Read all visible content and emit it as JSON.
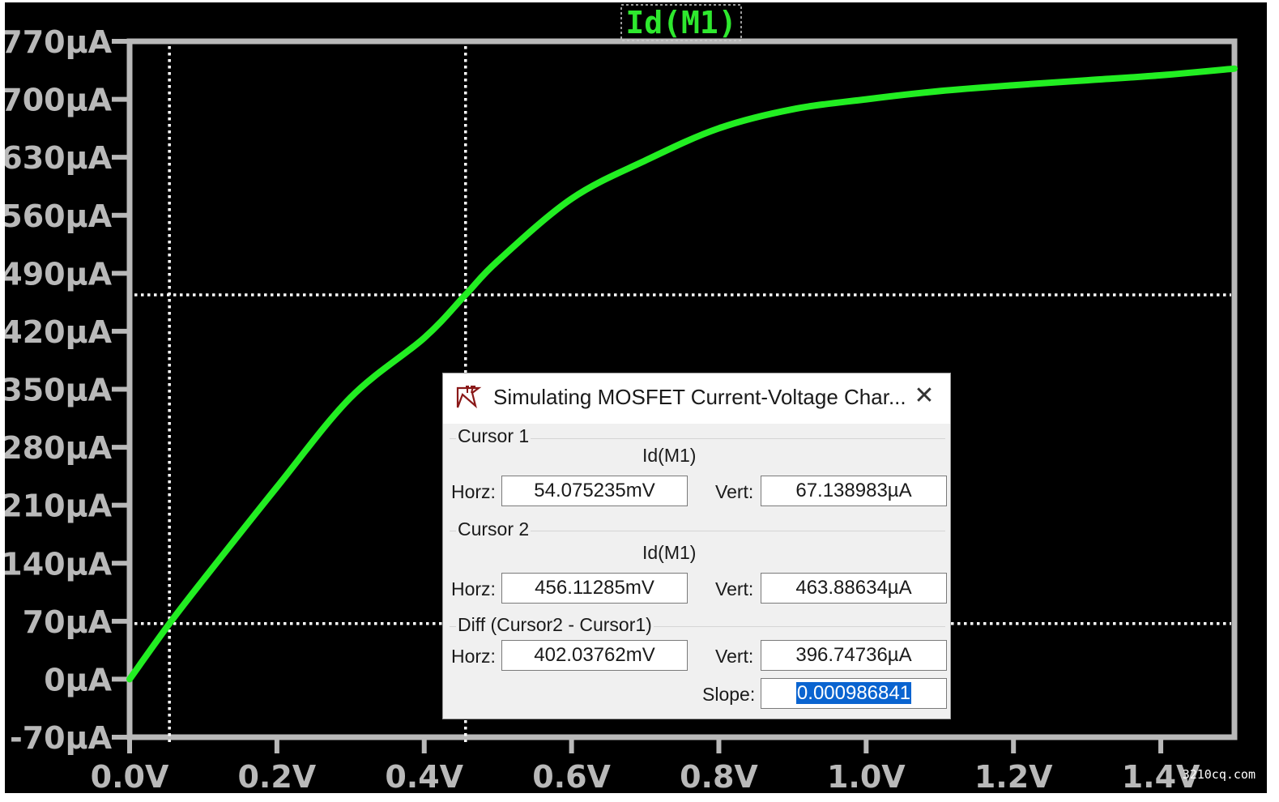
{
  "plot": {
    "trace_title": "Id(M1)",
    "background": "#000000",
    "trace_color": "#22ee22",
    "axis_color": "#b9b9b9"
  },
  "chart_data": {
    "type": "line",
    "title": "Id(M1)",
    "xlabel": "",
    "ylabel": "",
    "xlim": [
      0.0,
      1.5
    ],
    "ylim": [
      -70,
      770
    ],
    "x_unit": "V",
    "y_unit": "µA",
    "x_ticks": [
      "0.0V",
      "0.2V",
      "0.4V",
      "0.6V",
      "0.8V",
      "1.0V",
      "1.2V",
      "1.4V"
    ],
    "x_tick_values": [
      0.0,
      0.2,
      0.4,
      0.6,
      0.8,
      1.0,
      1.2,
      1.4
    ],
    "y_ticks": [
      "770µA",
      "700µA",
      "630µA",
      "560µA",
      "490µA",
      "420µA",
      "350µA",
      "280µA",
      "210µA",
      "140µA",
      "70µA",
      "0µA",
      "-70µA"
    ],
    "y_tick_values": [
      770,
      700,
      630,
      560,
      490,
      420,
      350,
      280,
      210,
      140,
      70,
      0,
      -70
    ],
    "grid": false,
    "series": [
      {
        "name": "Id(M1)",
        "x": [
          0.0,
          0.054,
          0.1,
          0.2,
          0.3,
          0.4,
          0.456,
          0.5,
          0.6,
          0.7,
          0.8,
          0.9,
          1.0,
          1.1,
          1.2,
          1.3,
          1.4,
          1.5
        ],
        "y": [
          0,
          67,
          120,
          232,
          340,
          412,
          464,
          505,
          580,
          626,
          665,
          688,
          700,
          710,
          717,
          723,
          729,
          737
        ]
      }
    ],
    "cursors": [
      {
        "x": 0.054075235,
        "y": 67.138983
      },
      {
        "x": 0.45611285,
        "y": 463.88634
      }
    ]
  },
  "dialog": {
    "title": "Simulating MOSFET Current-Voltage Char...",
    "close_symbol": "✕",
    "cursor1": {
      "group": "Cursor 1",
      "trace": "Id(M1)",
      "horz_label": "Horz:",
      "horz_value": "54.075235mV",
      "vert_label": "Vert:",
      "vert_value": "67.138983µA"
    },
    "cursor2": {
      "group": "Cursor 2",
      "trace": "Id(M1)",
      "horz_label": "Horz:",
      "horz_value": "456.11285mV",
      "vert_label": "Vert:",
      "vert_value": "463.88634µA"
    },
    "diff": {
      "group": "Diff (Cursor2 - Cursor1)",
      "horz_label": "Horz:",
      "horz_value": "402.03762mV",
      "vert_label": "Vert:",
      "vert_value": "396.74736µA",
      "slope_label": "Slope:",
      "slope_value": "0.000986841"
    }
  },
  "watermark": "3210cq.com"
}
